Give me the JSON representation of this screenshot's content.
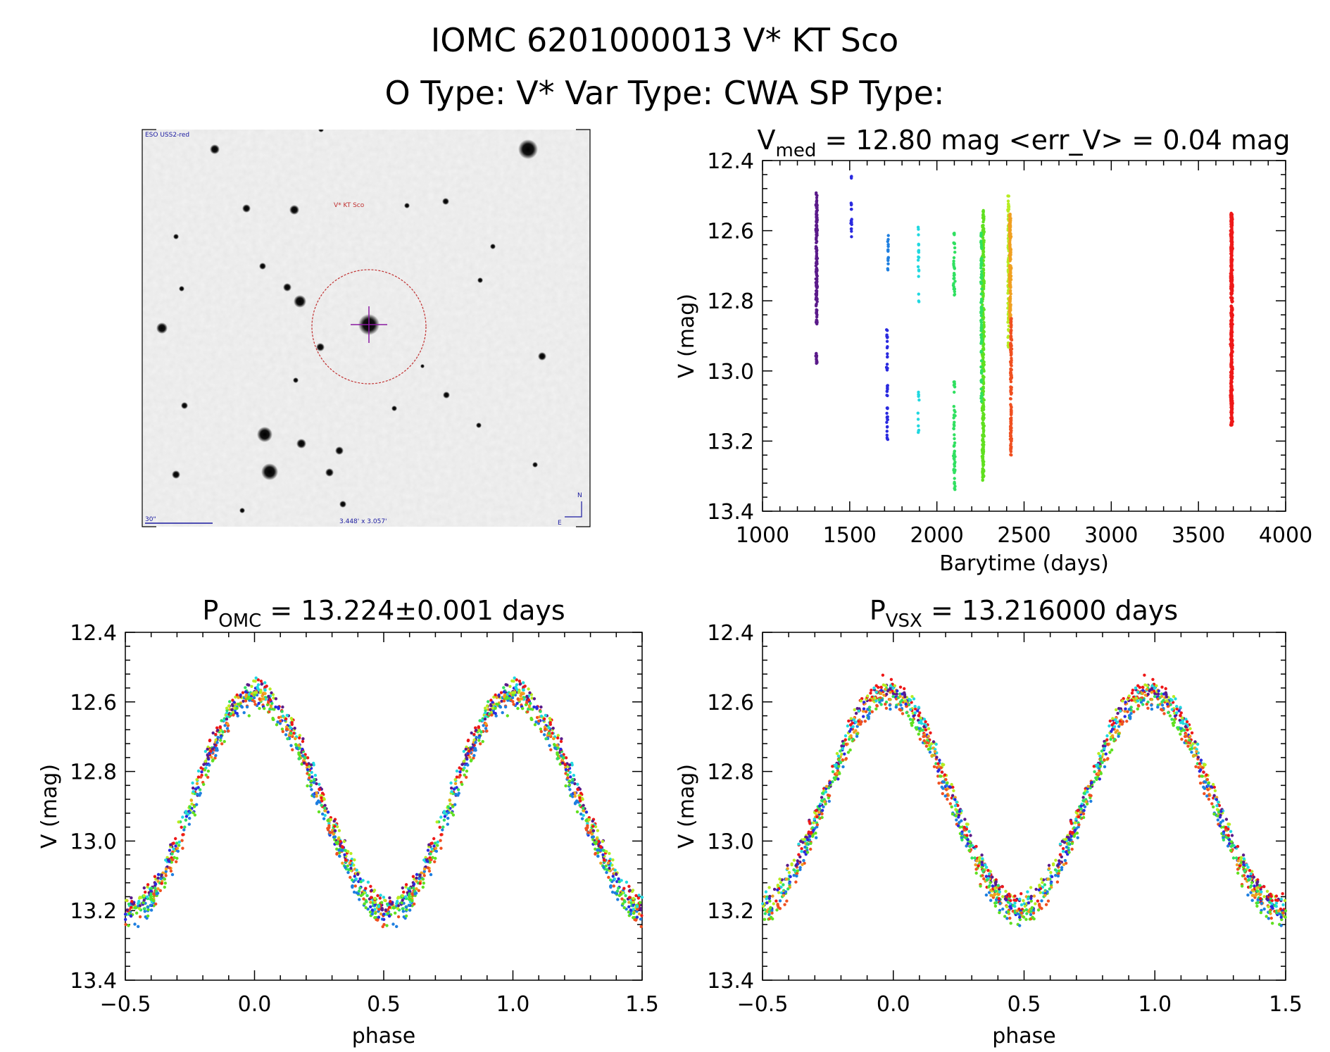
{
  "figure": {
    "title": "IOMC 6201000013   V* KT Sco",
    "subtitle": "O Type: V*  Var Type: CWA  SP Type:"
  },
  "finder_chart": {
    "survey_label": "ESO USS2-red",
    "target_label": "V* KT Sco",
    "scale_label": "30\"",
    "field_label": "3.448' x 3.057'",
    "north_label": "N",
    "east_label": "E"
  },
  "colors": {
    "palette": [
      "#5a1a8a",
      "#2a2adf",
      "#1e7fe0",
      "#20d8e0",
      "#30e060",
      "#60e020",
      "#b8ec20",
      "#f0a020",
      "#f05020",
      "#ee1818"
    ],
    "circle": "#c03030",
    "crosshair": "#8a1aa0"
  },
  "chart_data": [
    {
      "id": "lightcurve",
      "type": "scatter",
      "title_main": "V",
      "title_sub": "med",
      "title_rest": " = 12.80 mag <err_V> = 0.04 mag",
      "xlabel": "Barytime (days)",
      "ylabel": "V (mag)",
      "xlim": [
        1000,
        4000
      ],
      "ylim": [
        12.4,
        13.4
      ],
      "y_inverted": true,
      "xticks": [
        "1000",
        "1500",
        "2000",
        "2500",
        "3000",
        "3500",
        "4000"
      ],
      "yticks": [
        "12.4",
        "12.6",
        "12.8",
        "13.0",
        "13.2",
        "13.4"
      ],
      "segments": [
        {
          "t": 1310,
          "color_index": 0,
          "width": 12,
          "ranges": [
            [
              12.49,
              12.87
            ],
            [
              12.95,
              12.98
            ]
          ],
          "n": 180
        },
        {
          "t": 1510,
          "color_index": 1,
          "width": 8,
          "ranges": [
            [
              12.44,
              12.46
            ],
            [
              12.52,
              12.63
            ]
          ],
          "n": 20
        },
        {
          "t": 1715,
          "color_index": 1,
          "width": 10,
          "ranges": [
            [
              12.88,
              13.0
            ],
            [
              13.04,
              13.2
            ]
          ],
          "n": 45
        },
        {
          "t": 1720,
          "color_index": 2,
          "width": 8,
          "ranges": [
            [
              12.6,
              12.72
            ]
          ],
          "n": 15
        },
        {
          "t": 1895,
          "color_index": 3,
          "width": 8,
          "ranges": [
            [
              12.57,
              12.81
            ],
            [
              13.05,
              13.18
            ]
          ],
          "n": 30
        },
        {
          "t": 2100,
          "color_index": 4,
          "width": 14,
          "ranges": [
            [
              12.6,
              12.8
            ],
            [
              13.0,
              13.34
            ]
          ],
          "n": 80
        },
        {
          "t": 2265,
          "color_index": 5,
          "width": 16,
          "ranges": [
            [
              12.54,
              13.32
            ]
          ],
          "n": 320
        },
        {
          "t": 2255,
          "color_index": 4,
          "width": 10,
          "ranges": [
            [
              12.6,
              13.1
            ]
          ],
          "n": 80
        },
        {
          "t": 2410,
          "color_index": 6,
          "width": 10,
          "ranges": [
            [
              12.5,
              12.95
            ]
          ],
          "n": 90
        },
        {
          "t": 2420,
          "color_index": 7,
          "width": 14,
          "ranges": [
            [
              12.55,
              12.85
            ]
          ],
          "n": 150
        },
        {
          "t": 2425,
          "color_index": 8,
          "width": 12,
          "ranges": [
            [
              12.85,
              13.24
            ]
          ],
          "n": 150
        },
        {
          "t": 3690,
          "color_index": 9,
          "width": 16,
          "ranges": [
            [
              12.55,
              13.16
            ]
          ],
          "n": 520
        }
      ]
    },
    {
      "id": "phase_omc",
      "type": "scatter",
      "title_main": "P",
      "title_sub": "OMC",
      "title_rest": " = 13.224±0.001 days",
      "xlabel": "phase",
      "ylabel": "V (mag)",
      "xlim": [
        -0.5,
        1.5
      ],
      "ylim": [
        12.4,
        13.4
      ],
      "y_inverted": true,
      "xticks": [
        "−0.5",
        "0.0",
        "0.5",
        "1.0",
        "1.5"
      ],
      "yticks": [
        "12.4",
        "12.6",
        "12.8",
        "13.0",
        "13.2",
        "13.4"
      ],
      "curve": {
        "mean": 12.89,
        "amplitude": 0.31,
        "minimum_phase": 0.0,
        "maximum_phase": 0.52
      }
    },
    {
      "id": "phase_vsx",
      "type": "scatter",
      "title_main": "P",
      "title_sub": "VSX",
      "title_rest": " = 13.216000 days",
      "xlabel": "phase",
      "ylabel": "V (mag)",
      "xlim": [
        -0.5,
        1.5
      ],
      "ylim": [
        12.4,
        13.4
      ],
      "y_inverted": true,
      "xticks": [
        "−0.5",
        "0.0",
        "0.5",
        "1.0",
        "1.5"
      ],
      "yticks": [
        "12.4",
        "12.6",
        "12.8",
        "13.0",
        "13.2",
        "13.4"
      ],
      "curve": {
        "mean": 12.89,
        "amplitude": 0.31,
        "minimum_phase": -0.02,
        "maximum_phase": 0.48
      }
    }
  ]
}
